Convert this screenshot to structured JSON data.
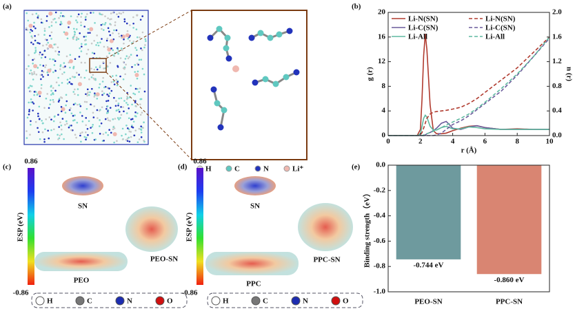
{
  "panels": {
    "a": {
      "label": "(a)",
      "legend": [
        "H",
        "C",
        "N",
        "Li⁺"
      ]
    },
    "c": {
      "label": "(c)",
      "colorbar_max": "0.86",
      "colorbar_min": "-0.86",
      "colorbar_label": "ESP (eV)",
      "molecules": [
        "SN",
        "PEO",
        "PEO-SN"
      ],
      "legend": [
        "H",
        "C",
        "N",
        "O"
      ]
    },
    "d": {
      "label": "(d)",
      "colorbar_max": "0.86",
      "colorbar_min": "-0.86",
      "colorbar_label": "ESP (eV)",
      "molecules": [
        "SN",
        "PPC",
        "PPC-SN"
      ],
      "legend": [
        "H",
        "C",
        "N",
        "O"
      ]
    }
  },
  "chart_data": [
    {
      "type": "line",
      "label": "(b)",
      "xlabel": "r (Å)",
      "ylabel": "g (r)",
      "y2label": "n (r)",
      "x": [
        0,
        1,
        1.8,
        2,
        2.1,
        2.2,
        2.3,
        2.4,
        2.6,
        2.8,
        3,
        3.3,
        3.6,
        4,
        4.5,
        5,
        5.5,
        6,
        7,
        8,
        9,
        10
      ],
      "xlim": [
        0,
        10
      ],
      "xticks": [
        0,
        2,
        4,
        6,
        8,
        10
      ],
      "ylim": [
        0,
        20
      ],
      "yticks": [
        0,
        4,
        8,
        12,
        16,
        20
      ],
      "y2lim": [
        0,
        2
      ],
      "y2ticks": [
        {
          "value": 0,
          "label": "0.0"
        },
        0.4,
        0.8,
        1.2,
        1.6,
        {
          "value": 2,
          "label": "2.0"
        }
      ],
      "series": [
        {
          "name": "Li-N(SN)",
          "color": "#b03a2e",
          "linestyle": "solid",
          "values": [
            0,
            0,
            0,
            1,
            6,
            13,
            16.5,
            14,
            5,
            0.8,
            0.3,
            0.3,
            0.4,
            0.8,
            1.2,
            1.5,
            1.6,
            1.3,
            1,
            1.1,
            1,
            1
          ]
        },
        {
          "name": "Li-C(SN)",
          "color": "#6a5a9a",
          "linestyle": "solid",
          "values": [
            0,
            0,
            0,
            0,
            0,
            0,
            0.1,
            0.3,
            0.5,
            0.8,
            1.2,
            2,
            2.3,
            1.2,
            1,
            1.4,
            1.6,
            1.3,
            1,
            1,
            1,
            1
          ]
        },
        {
          "name": "Li-All",
          "color": "#5fb8a0",
          "linestyle": "solid",
          "values": [
            0,
            0,
            0,
            0.3,
            1.5,
            2.8,
            3.3,
            3,
            1.5,
            0.9,
            0.9,
            1.3,
            1.5,
            1.1,
            1.1,
            1.4,
            1.3,
            1.1,
            1,
            1,
            1,
            1
          ]
        },
        {
          "name": "Li-N(SN)",
          "color": "#b03a2e",
          "linestyle": "dashed",
          "axis": "y2",
          "values": [
            0,
            0,
            0,
            0.01,
            0.05,
            0.12,
            0.2,
            0.28,
            0.35,
            0.38,
            0.39,
            0.4,
            0.41,
            0.43,
            0.46,
            0.52,
            0.6,
            0.7,
            0.9,
            1.1,
            1.35,
            1.6
          ]
        },
        {
          "name": "Li-C(SN)",
          "color": "#6a5a9a",
          "linestyle": "dashed",
          "axis": "y2",
          "values": [
            0,
            0,
            0,
            0,
            0,
            0,
            0,
            0,
            0,
            0,
            0.01,
            0.04,
            0.1,
            0.18,
            0.24,
            0.32,
            0.42,
            0.52,
            0.72,
            0.98,
            1.28,
            1.58
          ]
        },
        {
          "name": "Li-All",
          "color": "#5fb8a0",
          "linestyle": "dashed",
          "axis": "y2",
          "values": [
            0,
            0,
            0,
            0,
            0,
            0.01,
            0.02,
            0.03,
            0.05,
            0.07,
            0.09,
            0.13,
            0.17,
            0.22,
            0.28,
            0.35,
            0.44,
            0.54,
            0.76,
            1.0,
            1.28,
            1.6
          ]
        }
      ]
    },
    {
      "type": "bar",
      "label": "(e)",
      "ylabel": "Binding strength（eV）",
      "categories": [
        "PEO-SN",
        "PPC-SN"
      ],
      "values": [
        -0.744,
        -0.86
      ],
      "value_labels": [
        "-0.744 eV",
        "-0.860 eV"
      ],
      "colors": [
        "#6e9a9e",
        "#d98572"
      ],
      "ylim": [
        -1.0,
        0.0
      ],
      "yticks": [
        {
          "value": -1.0,
          "label": "-1.0"
        },
        -0.8,
        -0.6,
        -0.4,
        -0.2,
        {
          "value": 0,
          "label": "0.0"
        }
      ]
    }
  ]
}
